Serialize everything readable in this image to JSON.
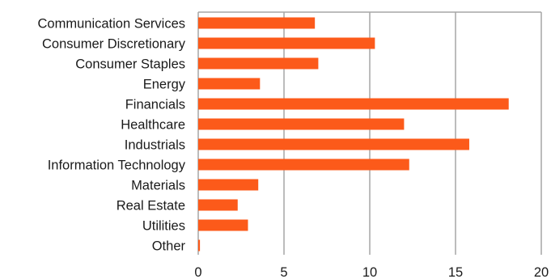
{
  "chart_data": {
    "type": "bar",
    "orientation": "horizontal",
    "title": "",
    "xlabel": "",
    "ylabel": "",
    "categories": [
      "Communication Services",
      "Consumer Discretionary",
      "Consumer Staples",
      "Energy",
      "Financials",
      "Healthcare",
      "Industrials",
      "Information Technology",
      "Materials",
      "Real Estate",
      "Utilities",
      "Other"
    ],
    "values": [
      6.8,
      10.3,
      7.0,
      3.6,
      18.1,
      12.0,
      15.8,
      12.3,
      3.5,
      2.3,
      2.9,
      0.1
    ],
    "xlim": [
      0,
      20
    ],
    "xticks": [
      "0",
      "5",
      "10",
      "15",
      "20"
    ],
    "grid": "vertical",
    "legend": "none",
    "colors": {
      "bar": "#fc5a1a",
      "grid": "#a6a6a6",
      "text": "#1a1a1a"
    }
  }
}
